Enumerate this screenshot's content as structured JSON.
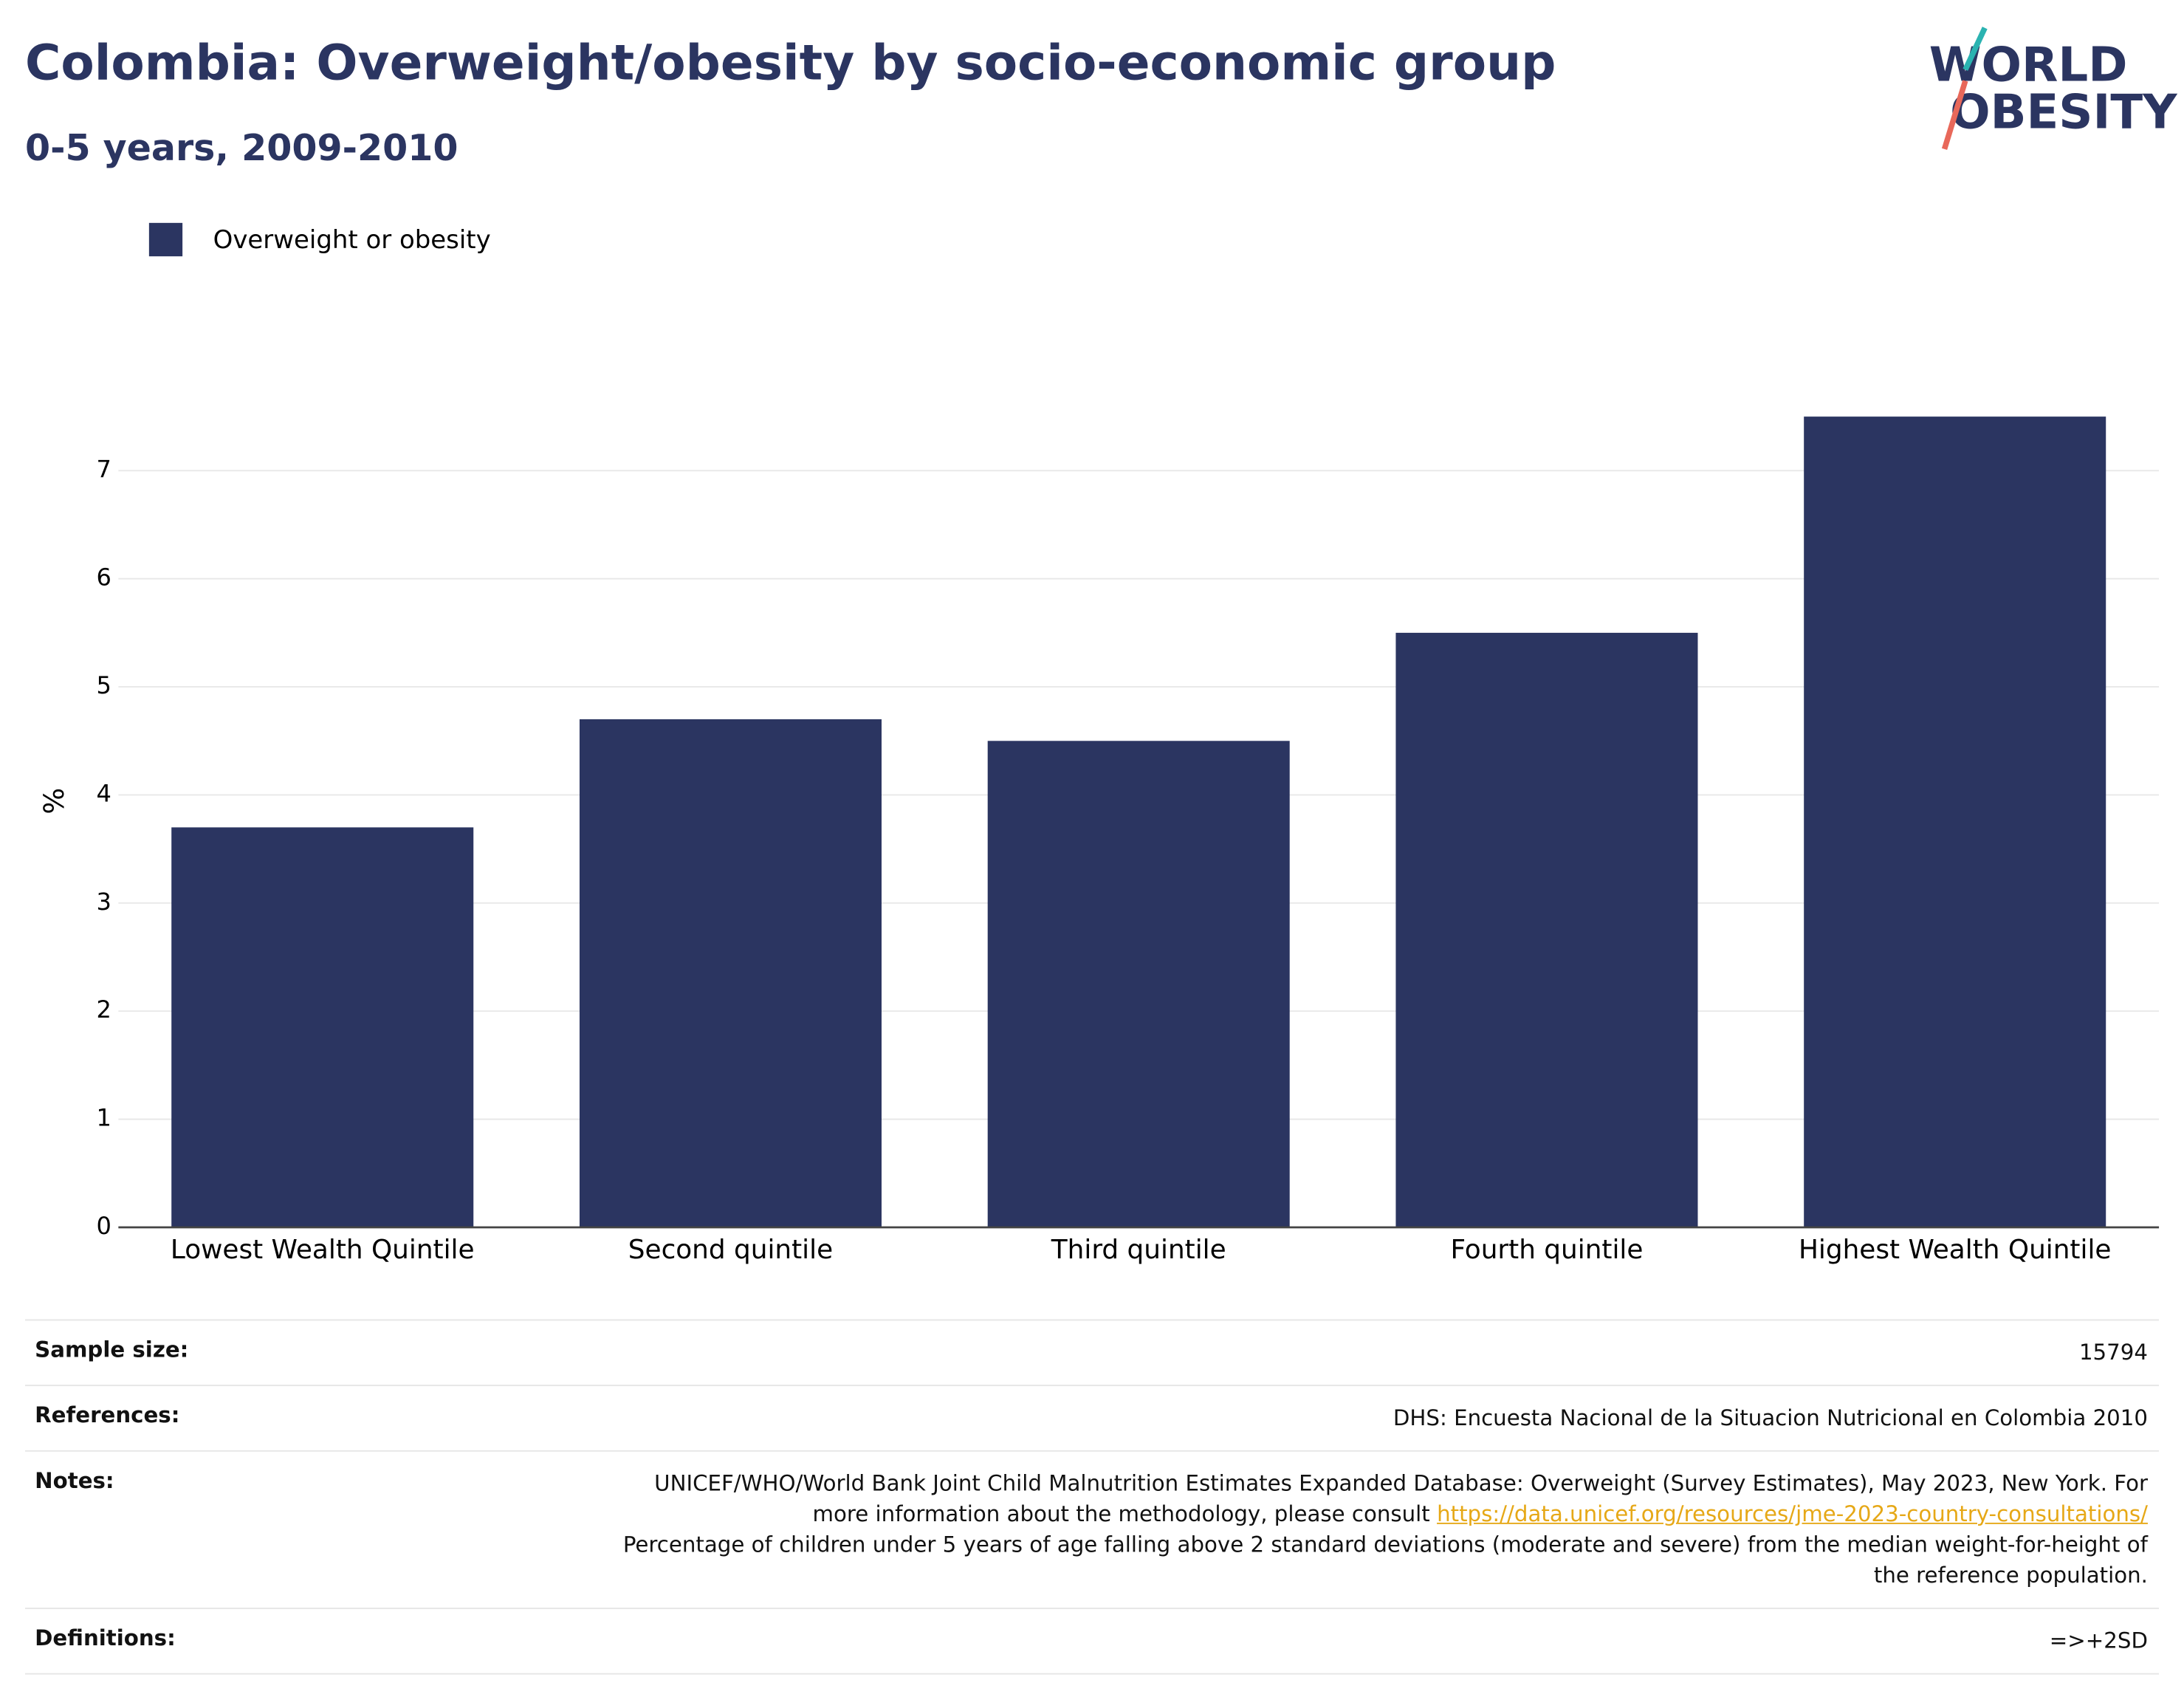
{
  "chart_data": {
    "type": "bar",
    "title": "Colombia: Overweight/obesity by socio-economic group",
    "subtitle": "0-5 years, 2009-2010",
    "logo": [
      "WORLD",
      "OBESITY"
    ],
    "y_label": "%",
    "categories": [
      "Lowest Wealth Quintile",
      "Second quintile",
      "Third quintile",
      "Fourth quintile",
      "Highest Wealth Quintile"
    ],
    "series": [
      {
        "name": "Overweight or obesity",
        "color": "#2b3561",
        "values": [
          3.7,
          4.7,
          4.5,
          5.5,
          7.5
        ]
      }
    ],
    "ylim": [
      0,
      7.9
    ],
    "yticks": [
      0,
      1,
      2,
      3,
      4,
      5,
      6,
      7
    ],
    "grid": true,
    "legend": "top-left"
  },
  "footer": {
    "rows": [
      {
        "label": "Sample size:",
        "value": "15794"
      },
      {
        "label": "References:",
        "value": "DHS: Encuesta Nacional de la Situacion Nutricional en Colombia 2010"
      },
      {
        "label": "Notes:",
        "value": [
          "UNICEF/WHO/World Bank Joint Child Malnutrition Estimates Expanded Database: Overweight (Survey Estimates), May 2023, New York. For more information about the methodology, please consult ",
          "https://data.unicef.org/resources/jme-2023-country-consultations/",
          "Percentage of children under 5 years of age falling above 2 standard deviations (moderate and severe) from the median weight-for-height of the reference population."
        ]
      },
      {
        "label": "Definitions:",
        "value": "=>+2SD"
      }
    ]
  }
}
